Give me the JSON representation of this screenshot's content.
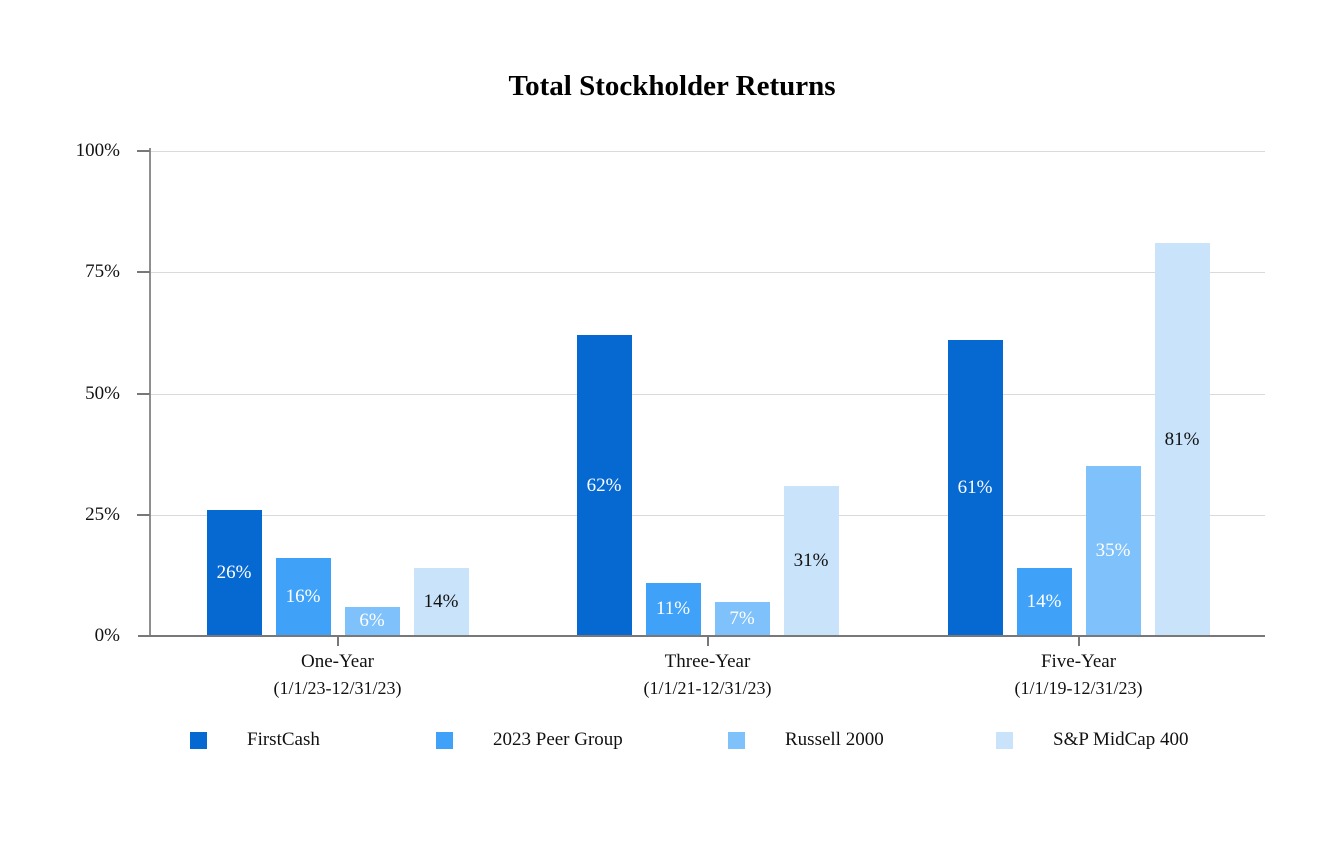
{
  "chart_data": {
    "type": "bar",
    "title": "Total Stockholder Returns",
    "categories": [
      "One-Year",
      "Three-Year",
      "Five-Year"
    ],
    "category_sublabels": [
      "(1/1/23-12/31/23)",
      "(1/1/21-12/31/23)",
      "(1/1/19-12/31/23)"
    ],
    "series": [
      {
        "name": "FirstCash",
        "color": "#0669d2",
        "label_color": "#ffffff",
        "values": [
          26,
          62,
          61
        ]
      },
      {
        "name": "2023 Peer Group",
        "color": "#3fa2f8",
        "label_color": "#ffffff",
        "values": [
          16,
          11,
          14
        ]
      },
      {
        "name": "Russell 2000",
        "color": "#7fc1fa",
        "label_color": "#ffffff",
        "values": [
          6,
          7,
          35
        ]
      },
      {
        "name": "S&P MidCap 400",
        "color": "#c9e3fb",
        "label_color": "#111111",
        "values": [
          14,
          31,
          81
        ]
      }
    ],
    "value_suffix": "%",
    "y_axis": {
      "min": 0,
      "max": 100,
      "ticks": [
        100,
        75,
        50,
        25,
        0
      ],
      "tick_suffix": "%"
    },
    "grid": true,
    "legend_position": "bottom",
    "colors": {
      "grid_line": "#dadada",
      "axis_line": "#787878",
      "background": "#ffffff"
    }
  }
}
